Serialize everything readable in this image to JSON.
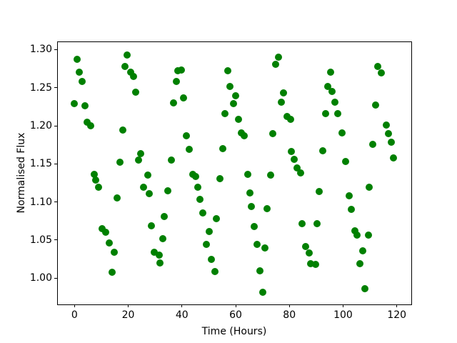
{
  "chart_data": {
    "type": "scatter",
    "title": "",
    "xlabel": "Time (Hours)",
    "ylabel": "Normalised Flux",
    "grid": false,
    "legend": null,
    "background_color": "#ffffff",
    "xlim": [
      -6.2,
      125.4
    ],
    "ylim": [
      0.9656,
      1.3097
    ],
    "xticks": [
      0,
      20,
      40,
      60,
      80,
      100,
      120
    ],
    "xtick_labels": [
      "0",
      "20",
      "40",
      "60",
      "80",
      "100",
      "120"
    ],
    "yticks": [
      1.0,
      1.05,
      1.1,
      1.15,
      1.2,
      1.25,
      1.3
    ],
    "ytick_labels": [
      "1.00",
      "1.05",
      "1.10",
      "1.15",
      "1.20",
      "1.25",
      "1.30"
    ],
    "series": [
      {
        "name": "normalised-flux-points",
        "marker_color": "#008000",
        "marker_diameter_px": 10,
        "x": [
          0.0,
          1.1,
          1.9,
          2.9,
          3.8,
          4.8,
          6.1,
          7.3,
          8.0,
          9.0,
          10.2,
          11.7,
          12.9,
          13.9,
          14.8,
          15.9,
          17.0,
          17.9,
          18.9,
          19.7,
          20.9,
          21.9,
          22.9,
          23.8,
          24.7,
          25.8,
          27.2,
          27.9,
          28.7,
          29.8,
          31.6,
          31.9,
          32.9,
          33.4,
          34.7,
          36.0,
          37.0,
          38.0,
          38.4,
          39.8,
          40.7,
          41.7,
          42.6,
          44.1,
          45.2,
          46.0,
          46.8,
          47.9,
          49.1,
          50.2,
          51.0,
          52.2,
          52.9,
          54.2,
          55.1,
          56.1,
          57.0,
          58.0,
          59.3,
          60.0,
          61.0,
          62.0,
          63.2,
          64.4,
          65.2,
          65.9,
          66.9,
          67.9,
          69.0,
          70.0,
          71.0,
          71.7,
          73.1,
          73.8,
          74.9,
          75.9,
          77.1,
          77.9,
          79.2,
          80.5,
          80.8,
          81.7,
          82.9,
          84.1,
          84.8,
          86.0,
          87.3,
          88.0,
          89.7,
          90.3,
          91.1,
          92.4,
          93.6,
          94.2,
          95.4,
          95.8,
          97.0,
          98.1,
          99.5,
          101.0,
          102.3,
          103.0,
          104.3,
          105.1,
          106.2,
          107.3,
          108.1,
          109.4,
          109.7,
          111.1,
          112.2,
          113.0,
          114.2,
          116.0,
          116.8,
          117.9,
          118.8
        ],
        "y": [
          1.229,
          1.287,
          1.27,
          1.258,
          1.226,
          1.205,
          1.2,
          1.136,
          1.129,
          1.119,
          1.065,
          1.06,
          1.046,
          1.008,
          1.034,
          1.105,
          1.152,
          1.194,
          1.278,
          1.293,
          1.27,
          1.265,
          1.244,
          1.155,
          1.163,
          1.119,
          1.135,
          1.111,
          1.069,
          1.034,
          1.03,
          1.02,
          1.052,
          1.081,
          1.115,
          1.155,
          1.23,
          1.258,
          1.272,
          1.273,
          1.237,
          1.187,
          1.169,
          1.136,
          1.133,
          1.119,
          1.103,
          1.086,
          1.044,
          1.061,
          1.025,
          1.009,
          1.078,
          1.131,
          1.17,
          1.216,
          1.272,
          1.252,
          1.229,
          1.239,
          1.208,
          1.191,
          1.187,
          1.136,
          1.112,
          1.094,
          1.068,
          1.044,
          1.01,
          0.982,
          1.04,
          1.091,
          1.135,
          1.19,
          1.281,
          1.29,
          1.231,
          1.243,
          1.212,
          1.208,
          1.166,
          1.156,
          1.145,
          1.138,
          1.072,
          1.042,
          1.033,
          1.019,
          1.018,
          1.072,
          1.114,
          1.167,
          1.216,
          1.252,
          1.27,
          1.245,
          1.231,
          1.216,
          1.191,
          1.153,
          1.108,
          1.09,
          1.062,
          1.057,
          1.019,
          1.036,
          0.986,
          1.057,
          1.119,
          1.176,
          1.227,
          1.278,
          1.269,
          1.201,
          1.19,
          1.178,
          1.158
        ]
      }
    ]
  }
}
